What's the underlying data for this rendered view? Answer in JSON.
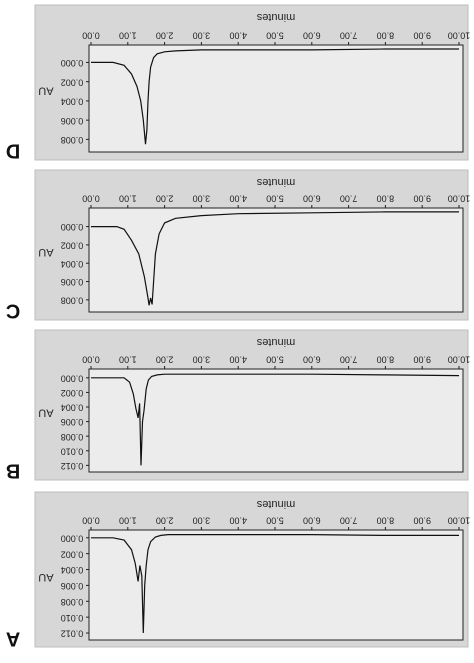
{
  "figure": {
    "colors": {
      "panel_bg": "#d7d7d7",
      "plot_bg": "#ececec",
      "trace": "#111111",
      "frame": "#222222"
    }
  },
  "chart_data": [
    {
      "type": "line",
      "panel_label": "D",
      "xlabel": "minutes",
      "ylabel": "AU",
      "x_ticks": [
        "0.00",
        "1.00",
        "2.00",
        "3.00",
        "4.00",
        "5.00",
        "6.00",
        "7.00",
        "8.00",
        "9.00",
        "10.00"
      ],
      "y_ticks": [
        "0.000",
        "0.002",
        "0.004",
        "0.006",
        "0.008"
      ],
      "xlim": [
        0,
        10
      ],
      "ylim": [
        -0.0015,
        0.009
      ],
      "series": [
        {
          "x": [
            0,
            0.6,
            0.9,
            1.1,
            1.25,
            1.35,
            1.42,
            1.48,
            1.52,
            1.55,
            1.58,
            1.62,
            1.7,
            1.8,
            2.0,
            2.3,
            3.0,
            4.0,
            6.0,
            8.0,
            10.0
          ],
          "y": [
            0.0,
            0.0,
            0.0003,
            0.0012,
            0.0025,
            0.004,
            0.006,
            0.0085,
            0.007,
            0.004,
            0.002,
            0.0005,
            -0.0005,
            -0.0009,
            -0.0011,
            -0.0012,
            -0.0013,
            -0.0013,
            -0.0013,
            -0.0014,
            -0.0014
          ]
        }
      ]
    },
    {
      "type": "line",
      "panel_label": "C",
      "xlabel": "minutes",
      "ylabel": "AU",
      "x_ticks": [
        "0.00",
        "1.00",
        "2.00",
        "3.00",
        "4.00",
        "5.00",
        "6.00",
        "7.00",
        "8.00",
        "9.00",
        "10.00"
      ],
      "y_ticks": [
        "0.000",
        "0.002",
        "0.004",
        "0.006",
        "0.008"
      ],
      "xlim": [
        0,
        10
      ],
      "ylim": [
        -0.0017,
        0.009
      ],
      "series": [
        {
          "x": [
            0,
            0.7,
            0.9,
            1.1,
            1.3,
            1.45,
            1.55,
            1.58,
            1.62,
            1.66,
            1.7,
            1.75,
            1.85,
            2.0,
            2.3,
            3.0,
            4.0,
            6.0,
            8.0,
            10.0
          ],
          "y": [
            0.0,
            0.0,
            0.0003,
            0.0015,
            0.003,
            0.0055,
            0.0078,
            0.0086,
            0.0078,
            0.0085,
            0.006,
            0.003,
            0.0008,
            -0.0004,
            -0.0009,
            -0.0012,
            -0.0014,
            -0.0015,
            -0.0016,
            -0.0016
          ]
        }
      ]
    },
    {
      "type": "line",
      "panel_label": "B",
      "xlabel": "minutes",
      "ylabel": "AU",
      "x_ticks": [
        "0.00",
        "1.00",
        "2.00",
        "3.00",
        "4.00",
        "5.00",
        "6.00",
        "7.00",
        "8.00",
        "9.00",
        "10.00"
      ],
      "y_ticks": [
        "0.000",
        "0.002",
        "0.004",
        "0.006",
        "0.008",
        "0.010",
        "0.012"
      ],
      "xlim": [
        0,
        10
      ],
      "ylim": [
        -0.0008,
        0.0125
      ],
      "series": [
        {
          "x": [
            0,
            0.9,
            1.05,
            1.15,
            1.22,
            1.28,
            1.32,
            1.36,
            1.4,
            1.44,
            1.5,
            1.56,
            1.65,
            1.8,
            2.0,
            3.0,
            4.0,
            6.0,
            8.0,
            10.0
          ],
          "y": [
            0.0,
            0.0,
            0.0006,
            0.0022,
            0.0042,
            0.0055,
            0.0035,
            0.012,
            0.006,
            0.0045,
            0.0015,
            0.0003,
            -0.0002,
            -0.0004,
            -0.0005,
            -0.0005,
            -0.0005,
            -0.0005,
            -0.0004,
            -0.0003
          ]
        }
      ]
    },
    {
      "type": "line",
      "panel_label": "A",
      "xlabel": "minutes",
      "ylabel": "AU",
      "x_ticks": [
        "0.00",
        "1.00",
        "2.00",
        "3.00",
        "4.00",
        "5.00",
        "6.00",
        "7.00",
        "8.00",
        "9.00",
        "10.00"
      ],
      "y_ticks": [
        "0.000",
        "0.002",
        "0.004",
        "0.006",
        "0.008",
        "0.010",
        "0.012"
      ],
      "xlim": [
        0,
        10
      ],
      "ylim": [
        -0.0006,
        0.0125
      ],
      "series": [
        {
          "x": [
            0,
            0.6,
            0.9,
            1.1,
            1.2,
            1.28,
            1.33,
            1.38,
            1.42,
            1.46,
            1.5,
            1.55,
            1.62,
            1.75,
            1.9,
            2.1,
            2.5,
            3.0,
            4.0,
            6.0,
            8.0,
            10.0
          ],
          "y": [
            0.0,
            0.0,
            0.0003,
            0.0015,
            0.0032,
            0.0055,
            0.0035,
            0.0048,
            0.012,
            0.006,
            0.0035,
            0.0015,
            0.0005,
            -0.0001,
            -0.0003,
            -0.0004,
            -0.0004,
            -0.0004,
            -0.0004,
            -0.0004,
            -0.0003,
            -0.0003
          ]
        }
      ]
    }
  ]
}
